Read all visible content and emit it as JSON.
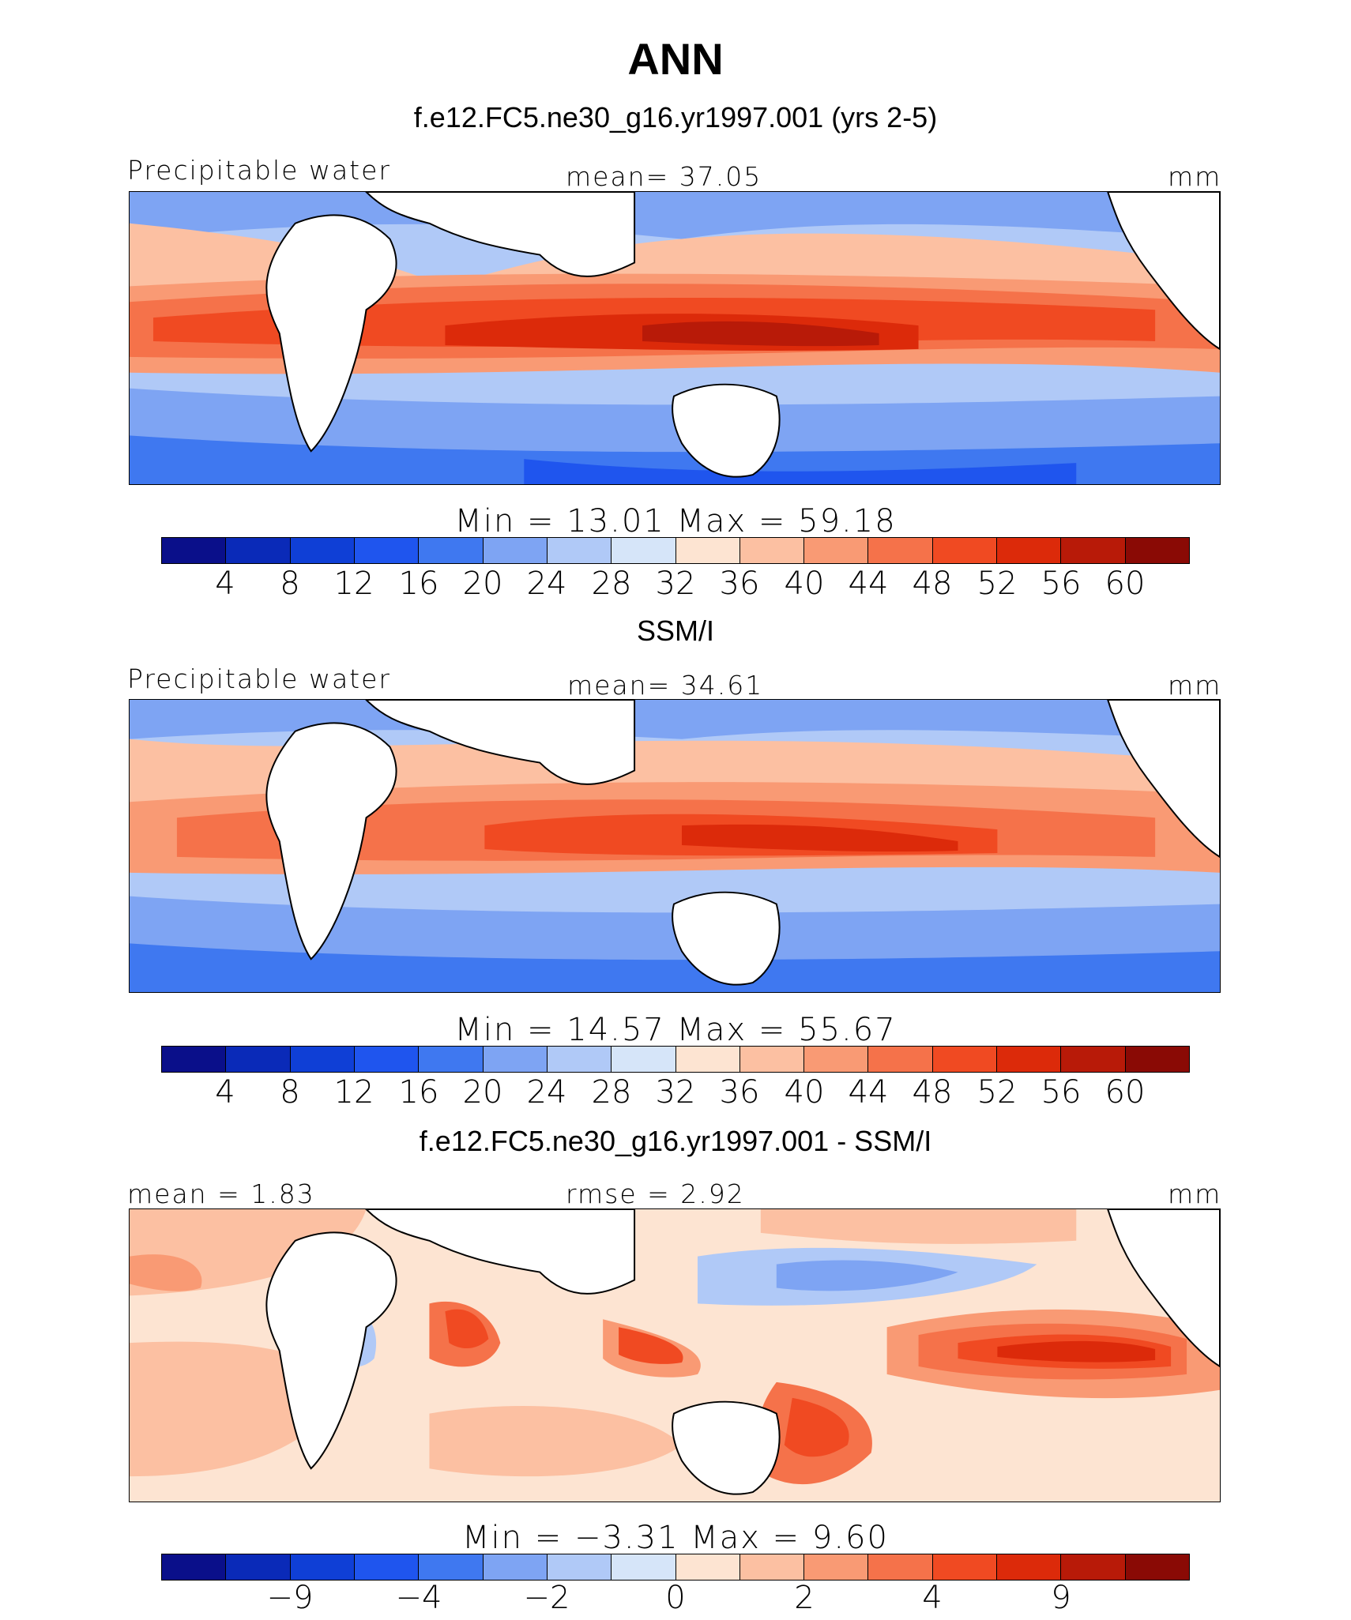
{
  "figure": {
    "season": "ANN",
    "panels": [
      {
        "title": "f.e12.FC5.ne30_g16.yr1997.001 (yrs 2-5)",
        "left_label": "Precipitable water",
        "center_label": "mean=   37.05",
        "units": "mm",
        "stats": "Min  =   13.01  Max  =   59.18",
        "colorbar_ticks": [
          "4",
          "8",
          "12",
          "16",
          "20",
          "24",
          "28",
          "32",
          "36",
          "40",
          "44",
          "48",
          "52",
          "56",
          "60"
        ]
      },
      {
        "title": "SSM/I",
        "left_label": "Precipitable water",
        "center_label": "mean=   34.61",
        "units": "mm",
        "stats": "Min  =   14.57  Max  =   55.67",
        "colorbar_ticks": [
          "4",
          "8",
          "12",
          "16",
          "20",
          "24",
          "28",
          "32",
          "36",
          "40",
          "44",
          "48",
          "52",
          "56",
          "60"
        ]
      },
      {
        "title": "f.e12.FC5.ne30_g16.yr1997.001 - SSM/I",
        "left_label": "mean =    1.83",
        "center_label": "rmse =    2.92",
        "units": "mm",
        "stats": "Min  =  −3.31  Max  =    9.60",
        "colorbar_ticks": [
          "−9",
          "−4",
          "−2",
          "0",
          "2",
          "4",
          "9"
        ]
      }
    ]
  },
  "colors": {
    "scale": [
      "#0a0f8a",
      "#0a2ab8",
      "#0f3fd6",
      "#1f55ee",
      "#3f78f0",
      "#7ea4f3",
      "#b0c9f7",
      "#d6e5f9",
      "#fde4d2",
      "#fcc0a2",
      "#f99a74",
      "#f5724a",
      "#f04a22",
      "#dc2a0a",
      "#b81a08",
      "#8a0a05"
    ],
    "land": "#ffffff",
    "outline": "#000000"
  }
}
